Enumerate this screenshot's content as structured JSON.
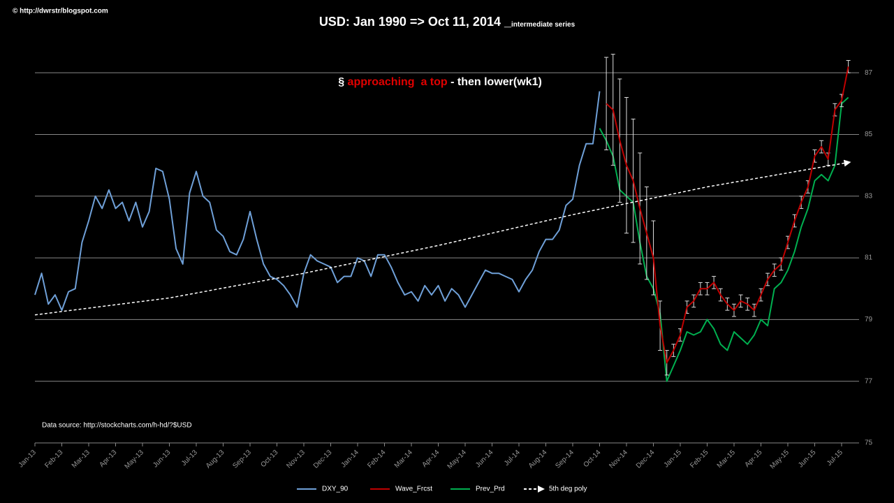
{
  "credit": "© http://dwrstr/blogspot.com",
  "chart_data": {
    "type": "line",
    "title": "USD: Jan 1990 => Oct 11, 2014 _",
    "title_suffix": "intermediate series",
    "annotation": {
      "prefix": "§ ",
      "highlight": "approaching  a top",
      "suffix": " - then lower(wk1)"
    },
    "source": "Data source: http://stockcharts.com/h-hd/?$USD",
    "xlim": [
      0,
      30.65
    ],
    "xticks": [
      {
        "value": 0,
        "label": "Jan-13"
      },
      {
        "value": 1,
        "label": "Feb-13"
      },
      {
        "value": 2,
        "label": "Mar-13"
      },
      {
        "value": 3,
        "label": "Apr-13"
      },
      {
        "value": 4,
        "label": "May-13"
      },
      {
        "value": 5,
        "label": "Jun-13"
      },
      {
        "value": 6,
        "label": "Jul-13"
      },
      {
        "value": 7,
        "label": "Aug-13"
      },
      {
        "value": 8,
        "label": "Sep-13"
      },
      {
        "value": 9,
        "label": "Oct-13"
      },
      {
        "value": 10,
        "label": "Nov-13"
      },
      {
        "value": 11,
        "label": "Dec-13"
      },
      {
        "value": 12,
        "label": "Jan-14"
      },
      {
        "value": 13,
        "label": "Feb-14"
      },
      {
        "value": 14,
        "label": "Mar-14"
      },
      {
        "value": 15,
        "label": "Apr-14"
      },
      {
        "value": 16,
        "label": "May-14"
      },
      {
        "value": 17,
        "label": "Jun-14"
      },
      {
        "value": 18,
        "label": "Jul-14"
      },
      {
        "value": 19,
        "label": "Aug-14"
      },
      {
        "value": 20,
        "label": "Sep-14"
      },
      {
        "value": 21,
        "label": "Oct-14"
      },
      {
        "value": 22,
        "label": "Nov-14"
      },
      {
        "value": 23,
        "label": "Dec-14"
      },
      {
        "value": 24,
        "label": "Jan-15"
      },
      {
        "value": 25,
        "label": "Feb-15"
      },
      {
        "value": 26,
        "label": "Mar-15"
      },
      {
        "value": 27,
        "label": "Apr-15"
      },
      {
        "value": 28,
        "label": "May-15"
      },
      {
        "value": 29,
        "label": "Jun-15"
      },
      {
        "value": 30,
        "label": "Jul-15"
      }
    ],
    "ylim": [
      75,
      88
    ],
    "yticks": [
      75,
      77,
      79,
      81,
      83,
      85,
      87
    ],
    "grid": true,
    "legend": "bottom",
    "series": [
      {
        "name": "DXY_90",
        "color": "#6fa0d8",
        "x": [
          0,
          0.25,
          0.5,
          0.75,
          1,
          1.25,
          1.5,
          1.75,
          2,
          2.25,
          2.5,
          2.75,
          3,
          3.25,
          3.5,
          3.75,
          4,
          4.25,
          4.5,
          4.75,
          5,
          5.25,
          5.5,
          5.75,
          6,
          6.25,
          6.5,
          6.75,
          7,
          7.25,
          7.5,
          7.75,
          8,
          8.25,
          8.5,
          8.75,
          9,
          9.25,
          9.5,
          9.75,
          10,
          10.25,
          10.5,
          10.75,
          11,
          11.25,
          11.5,
          11.75,
          12,
          12.25,
          12.5,
          12.75,
          13,
          13.25,
          13.5,
          13.75,
          14,
          14.25,
          14.5,
          14.75,
          15,
          15.25,
          15.5,
          15.75,
          16,
          16.25,
          16.5,
          16.75,
          17,
          17.25,
          17.5,
          17.75,
          18,
          18.25,
          18.5,
          18.75,
          19,
          19.25,
          19.5,
          19.75,
          20,
          20.25,
          20.5,
          20.75,
          21
        ],
        "values": [
          79.8,
          80.5,
          79.5,
          79.8,
          79.3,
          79.9,
          80.0,
          81.5,
          82.2,
          83.0,
          82.6,
          83.2,
          82.6,
          82.8,
          82.2,
          82.8,
          82.0,
          82.5,
          83.9,
          83.8,
          82.9,
          81.3,
          80.8,
          83.1,
          83.8,
          83.0,
          82.8,
          81.9,
          81.7,
          81.2,
          81.1,
          81.6,
          82.5,
          81.6,
          80.8,
          80.4,
          80.3,
          80.1,
          79.8,
          79.4,
          80.5,
          81.1,
          80.9,
          80.8,
          80.7,
          80.2,
          80.4,
          80.4,
          81.0,
          80.9,
          80.4,
          81.1,
          81.1,
          80.7,
          80.2,
          79.8,
          79.9,
          79.6,
          80.1,
          79.8,
          80.1,
          79.6,
          80.0,
          79.8,
          79.4,
          79.8,
          80.2,
          80.6,
          80.5,
          80.5,
          80.4,
          80.3,
          79.9,
          80.3,
          80.6,
          81.2,
          81.6,
          81.6,
          81.9,
          82.7,
          82.9,
          84.0,
          84.7,
          84.7,
          86.4
        ]
      },
      {
        "name": "Wave_Frcst",
        "color": "#c00000",
        "x": [
          21.25,
          21.5,
          21.75,
          22,
          22.25,
          22.5,
          22.75,
          23,
          23.25,
          23.5,
          23.75,
          24,
          24.25,
          24.5,
          24.75,
          25,
          25.25,
          25.5,
          25.75,
          26,
          26.25,
          26.5,
          26.75,
          27,
          27.25,
          27.5,
          27.75,
          28,
          28.25,
          28.5,
          28.75,
          29,
          29.25,
          29.5,
          29.75,
          30,
          30.25
        ],
        "values": [
          86.0,
          85.8,
          84.8,
          84.0,
          83.5,
          82.6,
          81.8,
          81.0,
          78.8,
          77.6,
          78.0,
          78.5,
          79.4,
          79.6,
          80.0,
          80.0,
          80.2,
          79.8,
          79.5,
          79.3,
          79.6,
          79.5,
          79.3,
          79.8,
          80.3,
          80.6,
          80.8,
          81.5,
          82.2,
          82.8,
          83.3,
          84.3,
          84.6,
          84.2,
          85.8,
          86.1,
          87.2
        ],
        "errors": [
          1.5,
          1.8,
          2.0,
          2.2,
          2.0,
          1.8,
          1.5,
          1.2,
          0.8,
          0.4,
          0.2,
          0.2,
          0.2,
          0.2,
          0.2,
          0.2,
          0.2,
          0.2,
          0.2,
          0.2,
          0.2,
          0.2,
          0.2,
          0.2,
          0.2,
          0.2,
          0.2,
          0.2,
          0.2,
          0.2,
          0.2,
          0.2,
          0.2,
          0.2,
          0.2,
          0.2,
          0.2
        ],
        "error_color": "#dddddd"
      },
      {
        "name": "Prev_Prd",
        "color": "#00b050",
        "x": [
          21,
          21.25,
          21.5,
          21.75,
          22,
          22.25,
          22.5,
          22.75,
          23,
          23.25,
          23.5,
          23.75,
          24,
          24.25,
          24.5,
          24.75,
          25,
          25.25,
          25.5,
          25.75,
          26,
          26.25,
          26.5,
          26.75,
          27,
          27.25,
          27.5,
          27.75,
          28,
          28.25,
          28.5,
          28.75,
          29,
          29.25,
          29.5,
          29.75,
          30,
          30.25
        ],
        "values": [
          85.2,
          84.8,
          84.3,
          83.2,
          83.0,
          82.8,
          81.5,
          80.4,
          80.0,
          79.2,
          77.0,
          77.5,
          78.0,
          78.6,
          78.5,
          78.6,
          79.0,
          78.7,
          78.2,
          78.0,
          78.6,
          78.4,
          78.2,
          78.5,
          79.0,
          78.8,
          80.0,
          80.2,
          80.6,
          81.2,
          82.0,
          82.6,
          83.5,
          83.7,
          83.5,
          84.0,
          86.0,
          86.2
        ]
      },
      {
        "name": "5th deg poly",
        "color": "#ffffff",
        "dashed": true,
        "arrow": true,
        "x": [
          0,
          5,
          10,
          15,
          20,
          25,
          30.3
        ],
        "values": [
          79.15,
          79.7,
          80.5,
          81.4,
          82.4,
          83.3,
          84.1
        ]
      }
    ]
  }
}
